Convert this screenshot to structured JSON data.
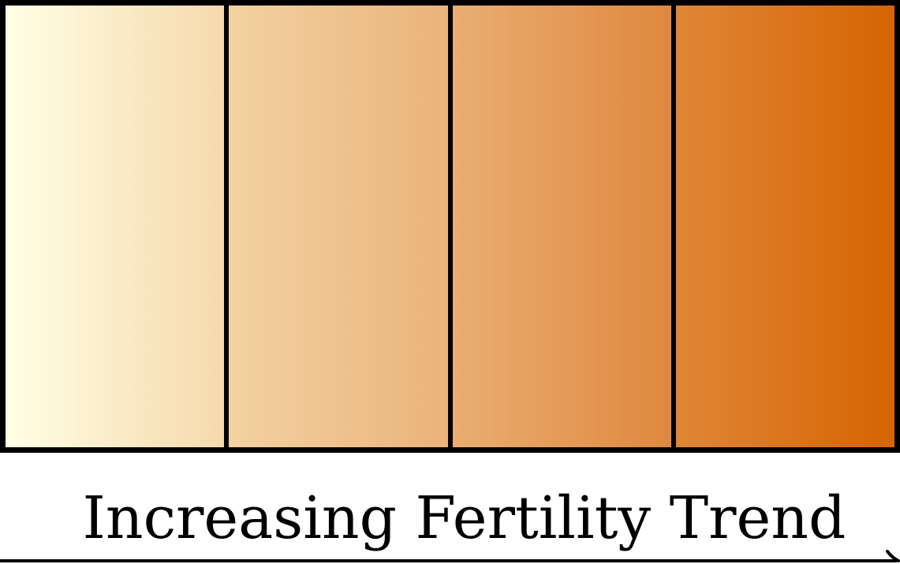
{
  "diagram": {
    "label": "Increasing Fertility Trend",
    "bands": [
      {
        "start_color": "#FFFFE5",
        "end_color": "#F6D9AC"
      },
      {
        "start_color": "#F3D2A1",
        "end_color": "#EAB37B"
      },
      {
        "start_color": "#E9AE72",
        "end_color": "#DF883E"
      },
      {
        "start_color": "#E08637",
        "end_color": "#D66402"
      }
    ],
    "border_color": "#000000",
    "arrow_direction": "right"
  }
}
